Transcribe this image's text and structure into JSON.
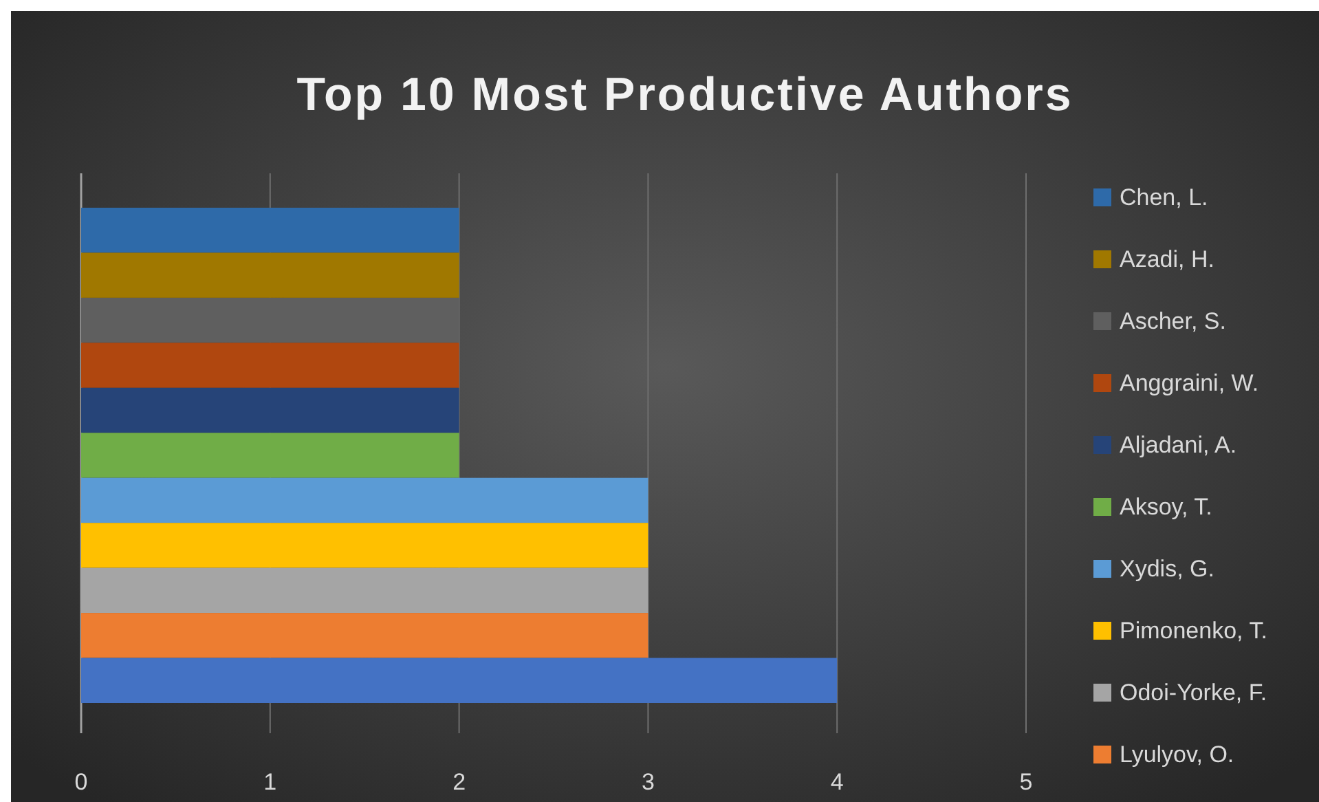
{
  "chart_data": {
    "type": "bar",
    "orientation": "horizontal",
    "title": "Top 10 Most Productive Authors",
    "categories": [
      null
    ],
    "series": [
      {
        "name": "Chen, L.",
        "color": "#2e6aa9",
        "values": [
          2
        ]
      },
      {
        "name": "Azadi, H.",
        "color": "#a07800",
        "values": [
          2
        ]
      },
      {
        "name": "Ascher, S.",
        "color": "#5f5f5f",
        "values": [
          2
        ]
      },
      {
        "name": "Anggraini, W.",
        "color": "#b0470f",
        "values": [
          2
        ]
      },
      {
        "name": "Aljadani, A.",
        "color": "#264478",
        "values": [
          2
        ]
      },
      {
        "name": "Aksoy, T.",
        "color": "#70ad47",
        "values": [
          2
        ]
      },
      {
        "name": "Xydis, G.",
        "color": "#5b9bd5",
        "values": [
          3
        ]
      },
      {
        "name": "Pimonenko, T.",
        "color": "#ffc000",
        "values": [
          3
        ]
      },
      {
        "name": "Odoi-Yorke, F.",
        "color": "#a5a5a5",
        "values": [
          3
        ]
      },
      {
        "name": "Lyulyov, O.",
        "color": "#ed7d31",
        "values": [
          3
        ]
      },
      {
        "color": "#4472c4",
        "values": [
          4
        ]
      }
    ],
    "xlim": [
      0,
      5
    ],
    "xticks": [
      0,
      1,
      2,
      3,
      4,
      5
    ],
    "grid": "x",
    "legend": "right"
  }
}
